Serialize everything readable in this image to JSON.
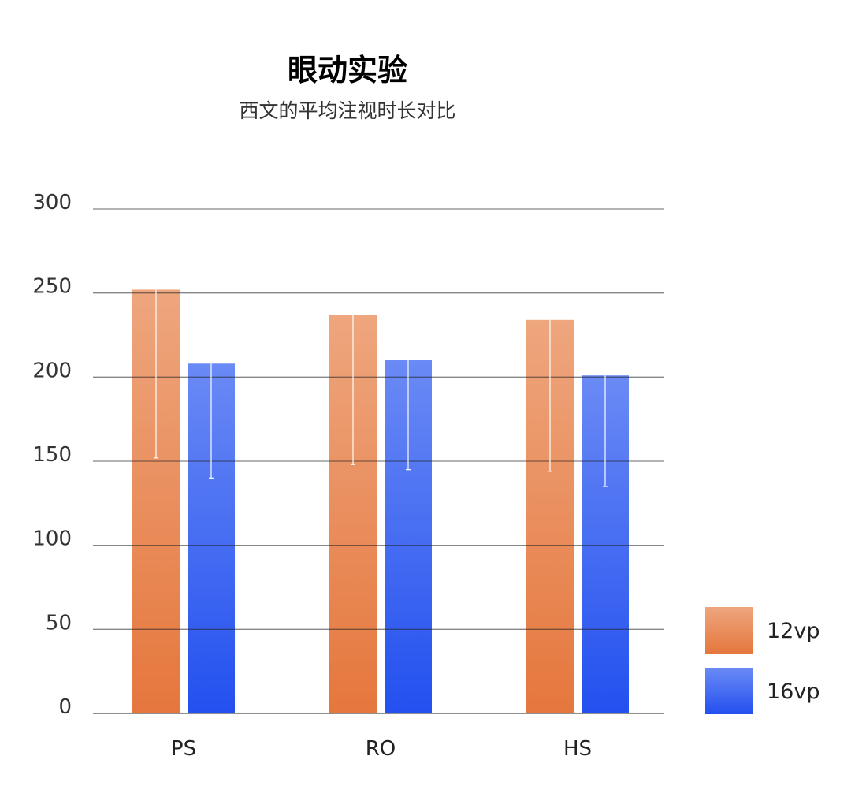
{
  "chart_data": {
    "type": "bar",
    "title": "眼动实验",
    "subtitle": "西文的平均注视时长对比",
    "xlabel": "",
    "ylabel": "",
    "categories": [
      "PS",
      "RO",
      "HS"
    ],
    "ylim": [
      0,
      300
    ],
    "yticks": [
      0,
      50,
      100,
      150,
      200,
      250,
      300
    ],
    "grid": true,
    "legend_position": "bottom-right",
    "series": [
      {
        "name": "12vp",
        "values": [
          252,
          237,
          234
        ],
        "error_lower": [
          152,
          148,
          144
        ],
        "color_top": "#eea67e",
        "color_bottom": "#e5773d"
      },
      {
        "name": "16vp",
        "values": [
          208,
          210,
          201
        ],
        "error_lower": [
          140,
          145,
          135
        ],
        "color_top": "#6a8af5",
        "color_bottom": "#2350ef"
      }
    ]
  }
}
